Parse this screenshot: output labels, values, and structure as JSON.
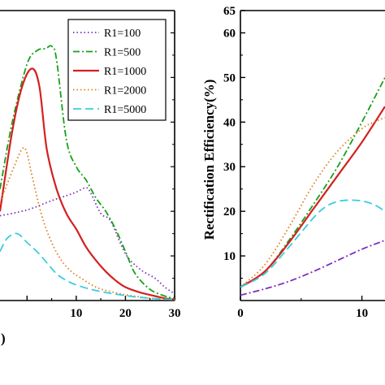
{
  "chart_data": [
    {
      "type": "line",
      "title": "",
      "xlabel": "",
      "ylabel": "",
      "x_tick_labels": [
        "10",
        "20",
        "30"
      ],
      "x_cut_label": ")",
      "xlim": [
        -5.5,
        30
      ],
      "ylim": [
        0,
        65
      ],
      "grid": false,
      "legend_position": "top-right",
      "series": [
        {
          "name": "R1=100",
          "color": "#7B2FBE",
          "dash": "dotted",
          "x": [
            -5.5,
            0,
            5,
            8,
            10,
            12,
            13,
            15,
            17,
            20,
            23,
            26,
            28,
            30
          ],
          "y": [
            19,
            20.3,
            22.4,
            23.5,
            24.3,
            25.3,
            24,
            19.5,
            17.8,
            10.5,
            7,
            5,
            3,
            1.5
          ]
        },
        {
          "name": "R1=500",
          "color": "#16A016",
          "dash": "dashdot",
          "x": [
            -5.5,
            -3,
            0,
            2,
            3.8,
            5,
            6,
            8,
            10,
            12,
            14,
            16,
            18,
            20,
            22,
            25,
            28,
            30
          ],
          "y": [
            25,
            40,
            53,
            56,
            56.5,
            57,
            54,
            36,
            30,
            27,
            23,
            20,
            16,
            11,
            6,
            2.5,
            1,
            0.5
          ]
        },
        {
          "name": "R1=1000",
          "color": "#D42020",
          "dash": "solid",
          "x": [
            -5.5,
            -3,
            -1,
            1,
            2.5,
            4,
            6,
            8,
            10,
            12,
            14,
            16,
            18,
            20,
            23,
            26,
            28,
            30
          ],
          "y": [
            20,
            38,
            48,
            52,
            48,
            34,
            25,
            19.5,
            16,
            12,
            9,
            6.5,
            4.5,
            3,
            1.8,
            1,
            0.5,
            0.2
          ]
        },
        {
          "name": "R1=2000",
          "color": "#E07C18",
          "dash": "dotted",
          "x": [
            -5.5,
            -3,
            -1,
            0,
            1,
            3,
            5,
            7,
            9,
            11,
            14,
            17,
            20,
            23,
            26,
            30
          ],
          "y": [
            22,
            29,
            34,
            33,
            28,
            19,
            13,
            9,
            6.5,
            5,
            3,
            2,
            1.3,
            0.8,
            0.4,
            0.2
          ]
        },
        {
          "name": "R1=5000",
          "color": "#37CEDD",
          "dash": "dashed",
          "x": [
            -5.5,
            -4,
            -2,
            0,
            2,
            4,
            6,
            8,
            10,
            13,
            16,
            20,
            24,
            28,
            30
          ],
          "y": [
            11,
            14,
            15,
            13,
            11,
            8.5,
            6,
            4.5,
            3.5,
            2.5,
            1.8,
            1.1,
            0.6,
            0.3,
            0.2
          ]
        }
      ]
    },
    {
      "type": "line",
      "title": "",
      "xlabel": "",
      "ylabel": "Rectification Efficiency(%)",
      "x_tick_labels": [
        "0",
        "10"
      ],
      "y_tick_labels": [
        "10",
        "20",
        "30",
        "40",
        "50",
        "60",
        "65"
      ],
      "xlim": [
        0,
        11.9
      ],
      "ylim": [
        0,
        65
      ],
      "grid": false,
      "series": [
        {
          "color": "#7B2FBE",
          "dash": "dashdot",
          "x": [
            0,
            2,
            4,
            6,
            8,
            10,
            11.9
          ],
          "y": [
            1.2,
            2.6,
            4.3,
            6.5,
            9,
            11.5,
            13.5
          ]
        },
        {
          "color": "#16A016",
          "dash": "dashdot",
          "x": [
            0,
            2,
            4,
            6,
            8,
            10,
            11.9
          ],
          "y": [
            3,
            6.5,
            13.5,
            21.5,
            30,
            40,
            50
          ]
        },
        {
          "color": "#D42020",
          "dash": "solid",
          "x": [
            0,
            2,
            4,
            6,
            8,
            10,
            11.9
          ],
          "y": [
            3,
            6.5,
            13,
            20.5,
            28,
            35.5,
            43.5
          ]
        },
        {
          "color": "#E07C18",
          "dash": "dotted",
          "x": [
            0,
            2,
            4,
            6,
            8,
            10,
            11,
            11.9
          ],
          "y": [
            3,
            8,
            16.5,
            26,
            33.5,
            38.5,
            40,
            41
          ]
        },
        {
          "color": "#37CEDD",
          "dash": "dashed",
          "x": [
            0,
            2,
            4,
            6,
            7,
            8,
            9,
            10,
            11,
            11.9
          ],
          "y": [
            3,
            6,
            12,
            18.5,
            21,
            22.2,
            22.5,
            22.3,
            21.5,
            20
          ]
        }
      ]
    }
  ]
}
